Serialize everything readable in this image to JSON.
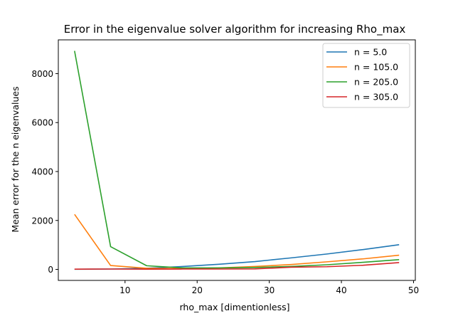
{
  "chart_data": {
    "type": "line",
    "title": "Error in the eigenvalue solver algorithm for increasing Rho_max",
    "xlabel": "rho_max [dimentionless]",
    "ylabel": "Mean error for the n eigenvalues",
    "xlim": [
      0.75,
      50.25
    ],
    "ylim": [
      -450,
      9380
    ],
    "xticks": [
      10,
      20,
      30,
      40,
      50
    ],
    "yticks": [
      0,
      2000,
      4000,
      6000,
      8000
    ],
    "grid": false,
    "legend_position": "upper-right",
    "series": [
      {
        "name": "n = 5.0",
        "color": "#1f77b4",
        "x": [
          3,
          8,
          13,
          18,
          23,
          28,
          33,
          38,
          43,
          48
        ],
        "y": [
          5,
          15,
          45,
          120,
          210,
          320,
          470,
          630,
          810,
          1010
        ]
      },
      {
        "name": "n = 105.0",
        "color": "#ff7f0e",
        "x": [
          3,
          8,
          13,
          18,
          23,
          28,
          33,
          38,
          43,
          48
        ],
        "y": [
          2250,
          160,
          45,
          30,
          60,
          120,
          200,
          310,
          430,
          580
        ]
      },
      {
        "name": "n = 205.0",
        "color": "#2ca02c",
        "x": [
          3,
          8,
          13,
          18,
          23,
          28,
          33,
          38,
          43,
          48
        ],
        "y": [
          8930,
          930,
          150,
          60,
          60,
          80,
          120,
          190,
          290,
          400
        ]
      },
      {
        "name": "n = 305.0",
        "color": "#d62728",
        "x": [
          3,
          8,
          13,
          18,
          23,
          28,
          33,
          38,
          43,
          48
        ],
        "y": [
          10,
          15,
          10,
          15,
          15,
          20,
          90,
          110,
          170,
          280
        ]
      }
    ]
  }
}
